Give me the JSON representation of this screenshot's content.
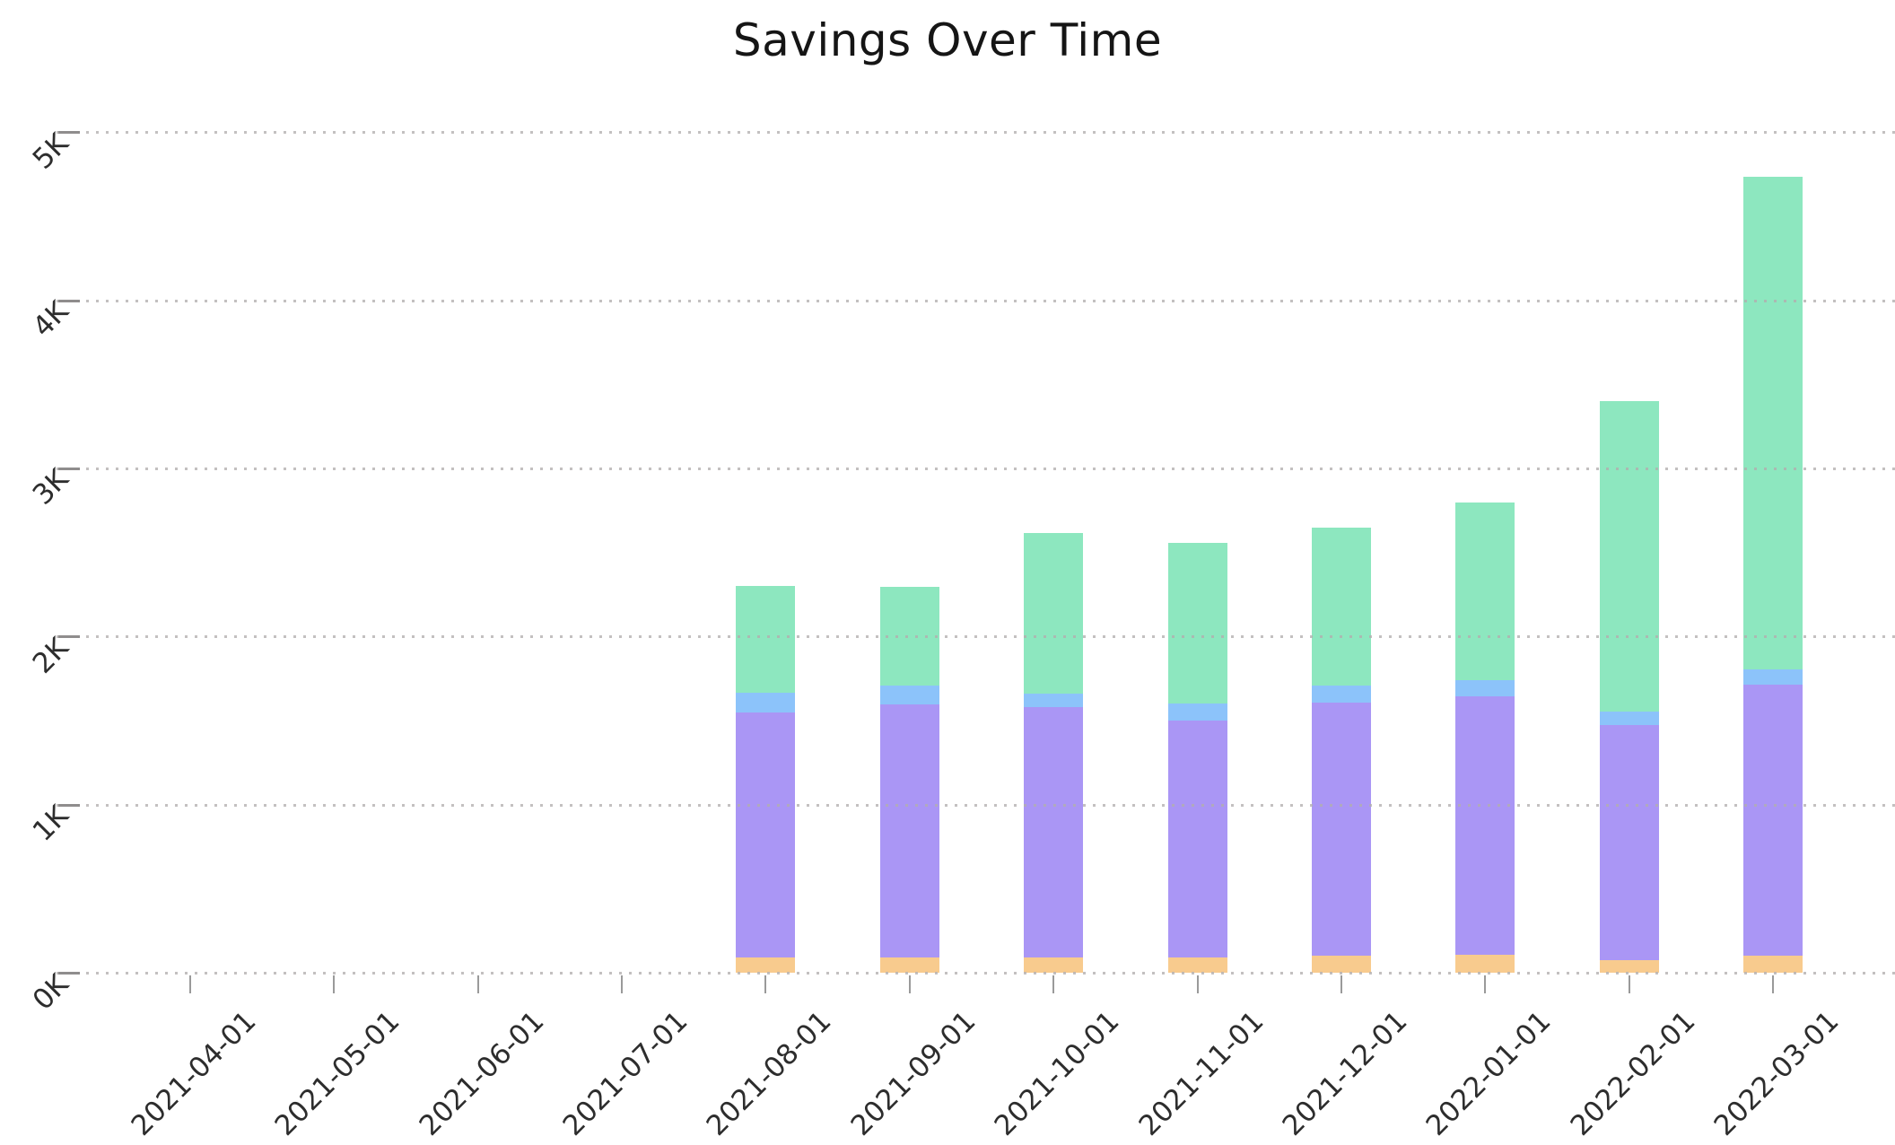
{
  "title": "Savings Over Time",
  "y_axis": {
    "tick_labels": [
      "0K",
      "1K",
      "2K",
      "3K",
      "4K",
      "5K"
    ],
    "tick_values": [
      0,
      1000,
      2000,
      3000,
      4000,
      5000
    ]
  },
  "x_axis": {
    "tick_labels": [
      "2021-04-01",
      "2021-05-01",
      "2021-06-01",
      "2021-07-01",
      "2021-08-01",
      "2021-09-01",
      "2021-10-01",
      "2021-11-01",
      "2021-12-01",
      "2022-01-01",
      "2022-02-01",
      "2022-03-01"
    ]
  },
  "chart_data": {
    "type": "bar",
    "stacked": true,
    "title": "Savings Over Time",
    "categories": [
      "2021-04-01",
      "2021-05-01",
      "2021-06-01",
      "2021-07-01",
      "2021-08-01",
      "2021-09-01",
      "2021-10-01",
      "2021-11-01",
      "2021-12-01",
      "2022-01-01",
      "2022-02-01",
      "2022-03-01"
    ],
    "series": [
      {
        "name": "orange",
        "color": "#f8cb8e",
        "values": [
          0,
          0,
          0,
          0,
          95,
          95,
          95,
          95,
          105,
          110,
          80,
          105
        ]
      },
      {
        "name": "purple",
        "color": "#aa96f5",
        "values": [
          0,
          0,
          0,
          0,
          1455,
          1505,
          1490,
          1410,
          1505,
          1535,
          1395,
          1610
        ]
      },
      {
        "name": "blue",
        "color": "#8cc3fa",
        "values": [
          0,
          0,
          0,
          0,
          120,
          110,
          80,
          100,
          100,
          100,
          80,
          90
        ]
      },
      {
        "name": "green",
        "color": "#8de7bf",
        "values": [
          0,
          0,
          0,
          0,
          635,
          590,
          955,
          955,
          940,
          1055,
          1850,
          2930
        ]
      }
    ],
    "totals": [
      0,
      0,
      0,
      0,
      2305,
      2300,
      2620,
      2560,
      2650,
      2800,
      3405,
      4735
    ],
    "xlabel": "",
    "ylabel": "",
    "ylim": [
      0,
      5000
    ],
    "grid": "horizontal dotted, drawn over bars",
    "legend": "none",
    "colors": {
      "gridline": "#b2aeae",
      "tick_label": "#2d2d2d",
      "title": "#151515",
      "background": "#ffffff"
    }
  }
}
